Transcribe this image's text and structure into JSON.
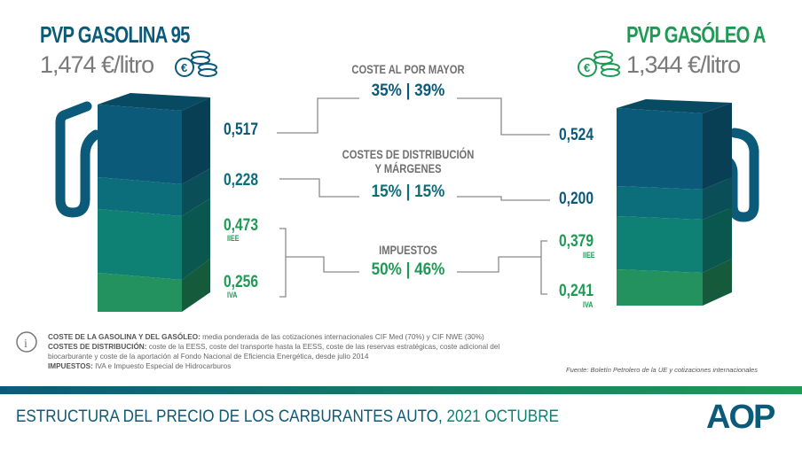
{
  "gasolina": {
    "title": "PVP GASOLINA 95",
    "price": "1,474 €/litro",
    "values": [
      "0,517",
      "0,228",
      "0,473",
      "0,256"
    ],
    "sub_iiee": "IIEE",
    "sub_iva": "IVA"
  },
  "gasoleo": {
    "title": "PVP GASÓLEO A",
    "price": "1,344 €/litro",
    "values": [
      "0,524",
      "0,200",
      "0,379",
      "0,241"
    ],
    "sub_iiee": "IIEE",
    "sub_iva": "IVA"
  },
  "categories": [
    {
      "label": "COSTE AL POR MAYOR",
      "pct": "35% | 39%"
    },
    {
      "label": "COSTES DE DISTRIBUCIÓN",
      "label2": "Y MÁRGENES",
      "pct": "15% | 15%"
    },
    {
      "label": "IMPUESTOS",
      "pct": "50% | 46%"
    }
  ],
  "notes": {
    "n1_bold": "COSTE DE LA GASOLINA Y DEL GASÓLEO:",
    "n1": " media ponderada de las cotizaciones internacionales CIF Med (70%) y CIF NWE (30%)",
    "n2_bold": "COSTES DE DISTRIBUCIÓN:",
    "n2": " coste de la EESS, coste del transporte hasta la EESS, coste de las reservas estratégicas, coste adicional del biocarburante y coste de la aportación al Fondo Nacional de Eficiencia Energética, desde julio 2014",
    "n3_bold": "IMPUESTOS:",
    "n3": " IVA e Impuesto Especial de Hidrocarburos",
    "source": "Fuente: Boletín Petrolero de la UE y cotizaciones internacionales"
  },
  "footer": {
    "title_a": "ESTRUCTURA DEL PRECIO DE LOS CARBURANTES AUTO, ",
    "title_b": "2021 OCTUBRE",
    "logo": "AOP"
  },
  "colors": {
    "blue": "#0b5a7a",
    "teal": "#0c6e7b",
    "seagreen": "#0e8074",
    "green": "#23925e",
    "gasoleo_title": "#1f9a55"
  },
  "icons": [
    "fuel-pump-icon",
    "euro-coins-icon",
    "info-icon"
  ]
}
